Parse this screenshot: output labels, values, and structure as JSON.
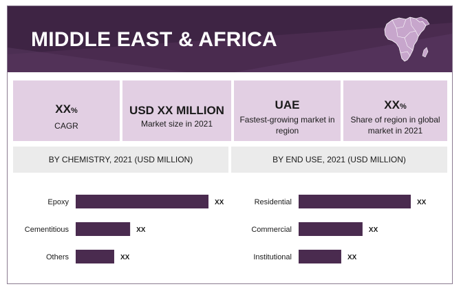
{
  "header": {
    "title": "MIDDLE EAST & AFRICA",
    "map_icon": "africa-map-icon",
    "colors": {
      "banner": "#4a2b4f",
      "accent": "#e2cfe3",
      "bar": "#4a2b4f"
    }
  },
  "kpis": [
    {
      "value": "XX",
      "unit": "%",
      "label": "CAGR"
    },
    {
      "value": "USD XX MILLION",
      "unit": "",
      "label": "Market size in 2021"
    },
    {
      "value": "UAE",
      "unit": "",
      "label": "Fastest-growing market in region"
    },
    {
      "value": "XX",
      "unit": "%",
      "label": "Share of region in global market in 2021"
    }
  ],
  "chart_data": [
    {
      "type": "bar",
      "orientation": "horizontal",
      "title": "BY CHEMISTRY, 2021 (USD MILLION)",
      "categories": [
        "Epoxy",
        "Cementitious",
        "Others"
      ],
      "values": [
        100,
        41,
        29
      ],
      "value_labels": [
        "XX",
        "XX",
        "XX"
      ],
      "grid": false
    },
    {
      "type": "bar",
      "orientation": "horizontal",
      "title": "BY END USE, 2021 (USD MILLION)",
      "categories": [
        "Residential",
        "Commercial",
        "Institutional"
      ],
      "values": [
        100,
        57,
        38
      ],
      "value_labels": [
        "XX",
        "XX",
        "XX"
      ],
      "grid": false
    }
  ]
}
